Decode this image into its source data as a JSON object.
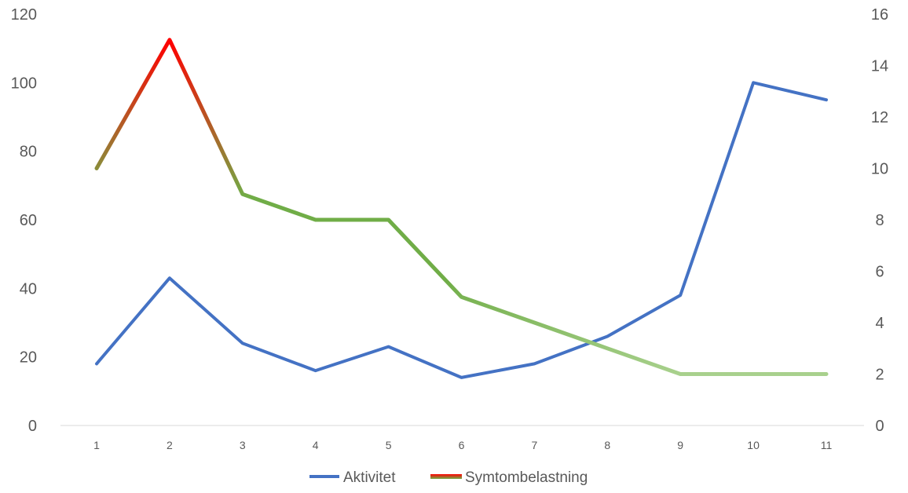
{
  "chart_data": {
    "type": "line",
    "categories": [
      "1",
      "2",
      "3",
      "4",
      "5",
      "6",
      "7",
      "8",
      "9",
      "10",
      "11"
    ],
    "y_left": {
      "ylim": [
        0,
        120
      ],
      "ticks": [
        "0",
        "20",
        "40",
        "60",
        "80",
        "100",
        "120"
      ]
    },
    "y_right": {
      "ylim": [
        0,
        16
      ],
      "ticks": [
        "0",
        "2",
        "4",
        "6",
        "8",
        "10",
        "12",
        "14",
        "16"
      ]
    },
    "grid": false,
    "legend_position": "bottom",
    "series": [
      {
        "name": "Aktivitet",
        "axis": "left",
        "color": "#4472C4",
        "values": [
          18,
          43,
          24,
          16,
          23,
          14,
          18,
          26,
          38,
          100,
          95
        ]
      },
      {
        "name": "Symtombelastning",
        "axis": "right",
        "color_gradient": [
          "#FF0000",
          "#70AD47",
          "#A9D18E"
        ],
        "values": [
          10,
          15,
          9,
          8,
          8,
          5,
          4,
          3,
          2,
          2,
          2
        ]
      }
    ]
  }
}
